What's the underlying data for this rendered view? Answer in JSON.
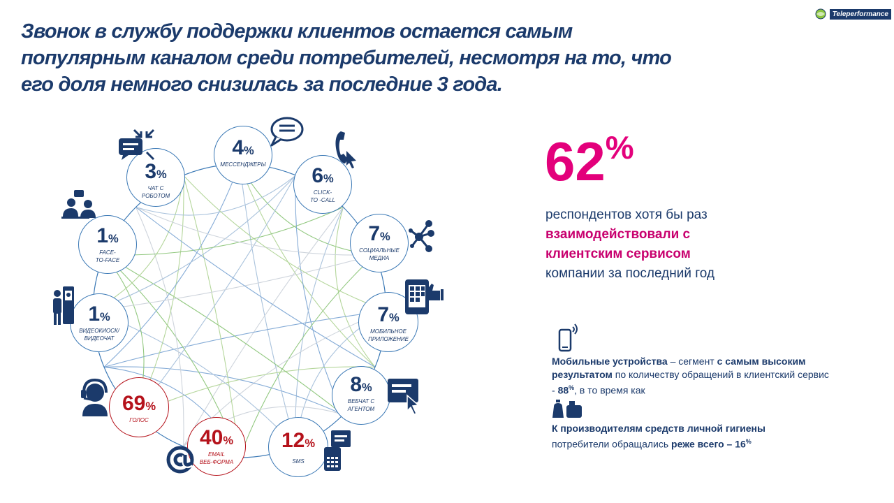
{
  "title": {
    "line1": "Звонок в службу поддержки клиентов остается самым",
    "line2": "популярным каналом среди потребителей, несмотря на то, что",
    "line3": "его доля немного снизилась за последние 3 года."
  },
  "logo": {
    "text": "Teleperformance"
  },
  "channels": [
    {
      "id": "messengers",
      "value": "4",
      "unit": "%",
      "label": "МЕССЕНДЖЕРЫ",
      "label2": "",
      "highlight": false
    },
    {
      "id": "click-to-call",
      "value": "6",
      "unit": "%",
      "label": "CLICK-",
      "label2": "TO -CALL",
      "highlight": false
    },
    {
      "id": "social",
      "value": "7",
      "unit": "%",
      "label": "СОЦИАЛЬНЫЕ",
      "label2": "МЕДИА",
      "highlight": false
    },
    {
      "id": "mobile-app",
      "value": "7",
      "unit": "%",
      "label": "МОБИЛЬНОЕ",
      "label2": "ПРИЛОЖЕНИЕ",
      "highlight": false
    },
    {
      "id": "webchat",
      "value": "8",
      "unit": "%",
      "label": "ВЕБЧАТ С",
      "label2": "АГЕНТОМ",
      "highlight": false
    },
    {
      "id": "sms",
      "value": "12",
      "unit": "%",
      "label": "SMS",
      "label2": "",
      "highlight": true
    },
    {
      "id": "email",
      "value": "40",
      "unit": "%",
      "label": "EMAIL",
      "label2": "ВЕБ-ФОРМА",
      "highlight": true
    },
    {
      "id": "voice",
      "value": "69",
      "unit": "%",
      "label": "ГОЛОС",
      "label2": "",
      "highlight": true
    },
    {
      "id": "videokiosk",
      "value": "1",
      "unit": "%",
      "label": "ВИДЕОКИОСК/",
      "label2": "ВИДЕОЧАТ",
      "highlight": false
    },
    {
      "id": "face-to-face",
      "value": "1",
      "unit": "%",
      "label": "FACE-",
      "label2": "TO-FACE",
      "highlight": false
    },
    {
      "id": "chatbot",
      "value": "3",
      "unit": "%",
      "label": "ЧАТ С",
      "label2": "РОБОТОМ",
      "highlight": false
    }
  ],
  "headline": {
    "value": "62",
    "unit": "%",
    "text1": "респондентов хотя бы раз",
    "text2": "взаимодействовали с",
    "text3": "клиентским сервисом",
    "text4": "компании за последний год"
  },
  "note_mobile": {
    "bold1": "Мобильные устройства",
    "text1": " – сегмент ",
    "bold2": "с самым высоким результатом",
    "text2": " по количеству обращений в клиентский сервис - ",
    "value": "88",
    "unit": "%",
    "text3": ", в то время как"
  },
  "note_hygiene": {
    "bold1": "К производителям средств личной гигиены",
    "text1": "потребители обращались ",
    "bold2": "реже всего – 16",
    "unit": "%"
  },
  "colors": {
    "navy": "#1b3a6b",
    "magenta": "#e3007b",
    "red": "#b5121b",
    "ring": "#3a78b5",
    "lines": [
      "#7fbf6a",
      "#a8cf8a",
      "#9bb8d6",
      "#c6cdd6",
      "#6e9ccf"
    ]
  }
}
